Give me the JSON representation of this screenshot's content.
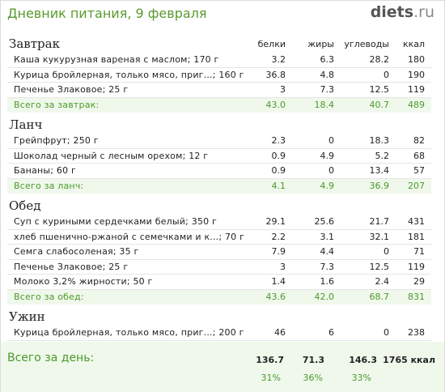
{
  "header": {
    "title": "Дневник питания, 9 февраля",
    "logo_main": "diets",
    "logo_tld": ".ru"
  },
  "columns": {
    "protein": "белки",
    "fat": "жиры",
    "carbs": "углеводы",
    "kcal": "ккал"
  },
  "meals": [
    {
      "title": "Завтрак",
      "items": [
        {
          "name": "Каша кукурузная вареная с маслом; 170 г",
          "protein": "3.2",
          "fat": "6.3",
          "carbs": "28.2",
          "kcal": "180"
        },
        {
          "name": "Курица бройлерная, только мясо, приг...; 160 г",
          "protein": "36.8",
          "fat": "4.8",
          "carbs": "0",
          "kcal": "190"
        },
        {
          "name": "Печенье Злаковое; 25 г",
          "protein": "3",
          "fat": "7.3",
          "carbs": "12.5",
          "kcal": "119"
        }
      ],
      "total": {
        "label": "Всего за завтрак:",
        "protein": "43.0",
        "fat": "18.4",
        "carbs": "40.7",
        "kcal": "489"
      }
    },
    {
      "title": "Ланч",
      "items": [
        {
          "name": "Грейпфрут; 250 г",
          "protein": "2.3",
          "fat": "0",
          "carbs": "18.3",
          "kcal": "82"
        },
        {
          "name": "Шоколад черный с лесным орехом; 12 г",
          "protein": "0.9",
          "fat": "4.9",
          "carbs": "5.2",
          "kcal": "68"
        },
        {
          "name": "Бананы; 60 г",
          "protein": "0.9",
          "fat": "0",
          "carbs": "13.4",
          "kcal": "57"
        }
      ],
      "total": {
        "label": "Всего за ланч:",
        "protein": "4.1",
        "fat": "4.9",
        "carbs": "36.9",
        "kcal": "207"
      }
    },
    {
      "title": "Обед",
      "items": [
        {
          "name": "Суп с куриными сердечками белый; 350 г",
          "protein": "29.1",
          "fat": "25.6",
          "carbs": "21.7",
          "kcal": "431"
        },
        {
          "name": "хлеб пшенично-ржаной с семечками и к...; 70 г",
          "protein": "2.2",
          "fat": "3.1",
          "carbs": "32.1",
          "kcal": "181"
        },
        {
          "name": "Семга слабосоленая; 35 г",
          "protein": "7.9",
          "fat": "4.4",
          "carbs": "0",
          "kcal": "71"
        },
        {
          "name": "Печенье Злаковое; 25 г",
          "protein": "3",
          "fat": "7.3",
          "carbs": "12.5",
          "kcal": "119"
        },
        {
          "name": "Молоко 3,2% жирности; 50 г",
          "protein": "1.4",
          "fat": "1.6",
          "carbs": "2.4",
          "kcal": "29"
        }
      ],
      "total": {
        "label": "Всего за обед:",
        "protein": "43.6",
        "fat": "42.0",
        "carbs": "68.7",
        "kcal": "831"
      }
    },
    {
      "title": "Ужин",
      "items": [
        {
          "name": "Курица бройлерная, только мясо, приг...; 200 г",
          "protein": "46",
          "fat": "6",
          "carbs": "0",
          "kcal": "238"
        }
      ]
    }
  ],
  "day_total": {
    "label": "Всего за день:",
    "protein": "136.7",
    "fat": "71.3",
    "carbs": "146.3",
    "kcal": "1765 ккал",
    "protein_pct": "31%",
    "fat_pct": "36%",
    "carbs_pct": "33%"
  }
}
